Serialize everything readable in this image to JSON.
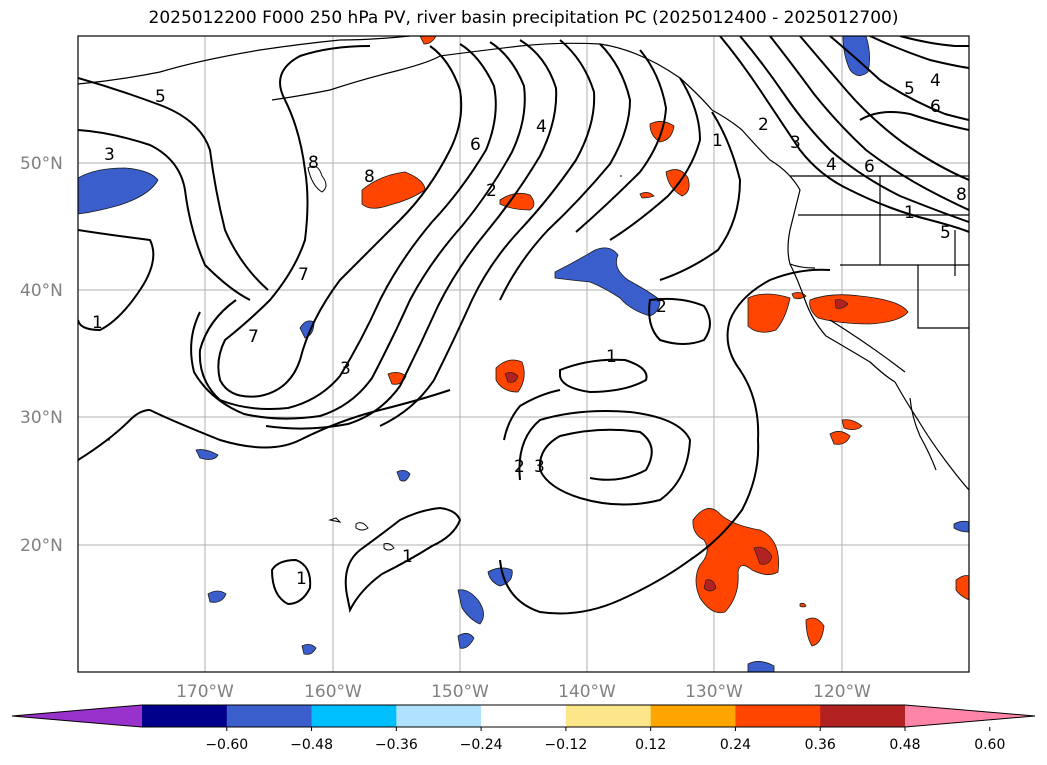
{
  "title": "2025012200 F000 250 hPa PV, river basin precipitation PC (2025012400 - 2025012700)",
  "latitude_labels": [
    "50°N",
    "40°N",
    "30°N",
    "20°N"
  ],
  "longitude_labels": [
    "170°W",
    "160°W",
    "150°W",
    "140°W",
    "130°W",
    "120°W"
  ],
  "colorbar": {
    "ticks": [
      "−0.60",
      "−0.48",
      "−0.36",
      "−0.24",
      "−0.12",
      "0.12",
      "0.24",
      "0.36",
      "0.48",
      "0.60"
    ],
    "colors": [
      "#9932cc",
      "#00008b",
      "#3a5fcd",
      "#00bfff",
      "#b0e2ff",
      "#ffffff",
      "#fde68a",
      "#ffa500",
      "#ff4500",
      "#b22222",
      "#ff85a8"
    ]
  },
  "contour_labels": [
    "5",
    "3",
    "8",
    "8",
    "7",
    "1",
    "7",
    "3",
    "6",
    "4",
    "2",
    "1",
    "2",
    "1",
    "2",
    "3",
    "1",
    "1",
    "2",
    "3",
    "5",
    "4",
    "6",
    "4",
    "6",
    "8",
    "5",
    "1"
  ]
}
